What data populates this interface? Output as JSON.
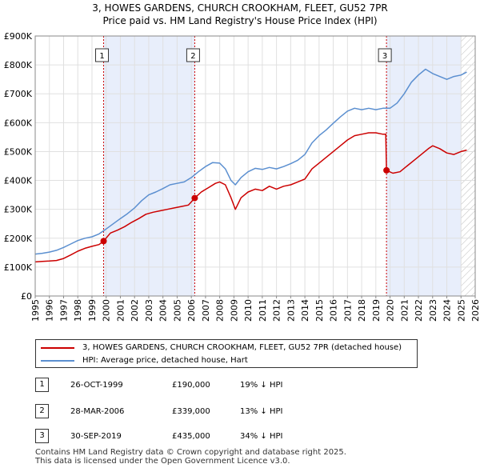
{
  "chart_data": {
    "type": "line",
    "title_line1": "3, HOWES GARDENS, CHURCH CROOKHAM, FLEET, GU52 7PR",
    "title_line2": "Price paid vs. HM Land Registry's House Price Index (HPI)",
    "x_range": [
      1995,
      2026
    ],
    "ylim": [
      0,
      900000
    ],
    "y_ticks": [
      {
        "value": 0,
        "label": "£0"
      },
      {
        "value": 100000,
        "label": "£100K"
      },
      {
        "value": 200000,
        "label": "£200K"
      },
      {
        "value": 300000,
        "label": "£300K"
      },
      {
        "value": 400000,
        "label": "£400K"
      },
      {
        "value": 500000,
        "label": "£500K"
      },
      {
        "value": 600000,
        "label": "£600K"
      },
      {
        "value": 700000,
        "label": "£700K"
      },
      {
        "value": 800000,
        "label": "£800K"
      },
      {
        "value": 900000,
        "label": "£900K"
      }
    ],
    "x_ticks": [
      "1995",
      "1996",
      "1997",
      "1998",
      "1999",
      "2000",
      "2001",
      "2002",
      "2003",
      "2004",
      "2005",
      "2006",
      "2007",
      "2008",
      "2009",
      "2010",
      "2011",
      "2012",
      "2013",
      "2014",
      "2015",
      "2016",
      "2017",
      "2018",
      "2019",
      "2020",
      "2021",
      "2022",
      "2023",
      "2024",
      "2025",
      "2026"
    ],
    "shaded_periods": [
      [
        1999.82,
        2006.24
      ],
      [
        2019.75,
        2025.0
      ]
    ],
    "future_hatch_from": 2025.0,
    "colors": {
      "property": "#cc0000",
      "hpi": "#5b8fd0",
      "shade": "#e8eefb",
      "vline": "#cc0000"
    },
    "series": [
      {
        "name": "3, HOWES GARDENS, CHURCH CROOKHAM, FLEET, GU52 7PR (detached house)",
        "x": [
          1995.0,
          1995.5,
          1996.0,
          1996.5,
          1997.0,
          1997.5,
          1998.0,
          1998.5,
          1999.0,
          1999.5,
          1999.82,
          2000.3,
          2000.8,
          2001.3,
          2001.8,
          2002.3,
          2002.8,
          2003.3,
          2003.8,
          2004.3,
          2004.8,
          2005.3,
          2005.8,
          2006.24,
          2006.7,
          2007.2,
          2007.7,
          2008.0,
          2008.4,
          2008.8,
          2009.1,
          2009.5,
          2010.0,
          2010.5,
          2011.0,
          2011.5,
          2012.0,
          2012.5,
          2013.0,
          2013.5,
          2014.0,
          2014.5,
          2015.0,
          2015.5,
          2016.0,
          2016.5,
          2017.0,
          2017.5,
          2018.0,
          2018.5,
          2019.0,
          2019.5,
          2019.7,
          2019.75,
          2020.2,
          2020.7,
          2021.2,
          2021.7,
          2022.2,
          2022.7,
          2023.0,
          2023.5,
          2024.0,
          2024.5,
          2025.0,
          2025.4
        ],
        "values": [
          118000,
          120000,
          121000,
          123000,
          130000,
          142000,
          155000,
          165000,
          172000,
          178000,
          190000,
          218000,
          228000,
          240000,
          255000,
          268000,
          283000,
          290000,
          295000,
          300000,
          305000,
          310000,
          315000,
          339000,
          360000,
          375000,
          390000,
          395000,
          385000,
          340000,
          300000,
          340000,
          360000,
          370000,
          365000,
          380000,
          370000,
          380000,
          385000,
          395000,
          405000,
          440000,
          460000,
          480000,
          500000,
          520000,
          540000,
          555000,
          560000,
          565000,
          565000,
          560000,
          560000,
          435000,
          425000,
          430000,
          450000,
          470000,
          490000,
          510000,
          520000,
          510000,
          495000,
          490000,
          500000,
          505000
        ]
      },
      {
        "name": "HPI: Average price, detached house, Hart",
        "x": [
          1995.0,
          1995.5,
          1996.0,
          1996.5,
          1997.0,
          1997.5,
          1998.0,
          1998.5,
          1999.0,
          1999.5,
          2000.0,
          2000.5,
          2001.0,
          2001.5,
          2002.0,
          2002.5,
          2003.0,
          2003.5,
          2004.0,
          2004.5,
          2005.0,
          2005.5,
          2006.0,
          2006.5,
          2007.0,
          2007.5,
          2008.0,
          2008.4,
          2008.8,
          2009.1,
          2009.5,
          2010.0,
          2010.5,
          2011.0,
          2011.5,
          2012.0,
          2012.5,
          2013.0,
          2013.5,
          2014.0,
          2014.5,
          2015.0,
          2015.5,
          2016.0,
          2016.5,
          2017.0,
          2017.5,
          2018.0,
          2018.5,
          2019.0,
          2019.5,
          2020.0,
          2020.5,
          2021.0,
          2021.5,
          2022.0,
          2022.5,
          2023.0,
          2023.5,
          2024.0,
          2024.5,
          2025.0,
          2025.4
        ],
        "values": [
          145000,
          148000,
          152000,
          158000,
          168000,
          180000,
          192000,
          200000,
          205000,
          215000,
          232000,
          250000,
          268000,
          285000,
          305000,
          330000,
          350000,
          360000,
          372000,
          385000,
          390000,
          395000,
          410000,
          430000,
          448000,
          462000,
          460000,
          440000,
          400000,
          385000,
          410000,
          430000,
          442000,
          438000,
          445000,
          440000,
          448000,
          458000,
          470000,
          490000,
          530000,
          555000,
          575000,
          598000,
          620000,
          640000,
          650000,
          645000,
          650000,
          645000,
          650000,
          650000,
          668000,
          700000,
          740000,
          765000,
          785000,
          770000,
          760000,
          750000,
          760000,
          765000,
          775000
        ]
      }
    ],
    "markers": [
      {
        "id": "1",
        "year": 1999.82,
        "value": 190000
      },
      {
        "id": "2",
        "year": 2006.24,
        "value": 339000
      },
      {
        "id": "3",
        "year": 2019.75,
        "value": 435000
      }
    ]
  },
  "legend": {
    "property_label": "3, HOWES GARDENS, CHURCH CROOKHAM, FLEET, GU52 7PR (detached house)",
    "hpi_label": "HPI: Average price, detached house, Hart"
  },
  "sales": [
    {
      "id": "1",
      "date": "26-OCT-1999",
      "price": "£190,000",
      "hpi": "19% ↓ HPI"
    },
    {
      "id": "2",
      "date": "28-MAR-2006",
      "price": "£339,000",
      "hpi": "13% ↓ HPI"
    },
    {
      "id": "3",
      "date": "30-SEP-2019",
      "price": "£435,000",
      "hpi": "34% ↓ HPI"
    }
  ],
  "footer": {
    "line1": "Contains HM Land Registry data © Crown copyright and database right 2025.",
    "line2": "This data is licensed under the Open Government Licence v3.0."
  }
}
